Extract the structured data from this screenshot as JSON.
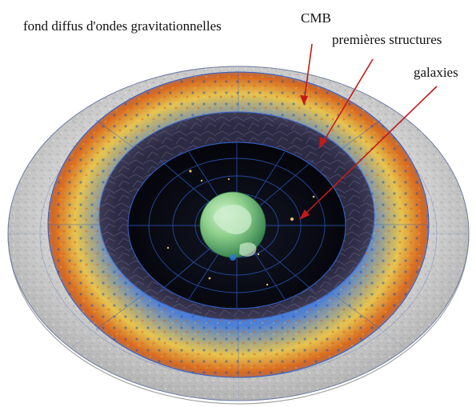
{
  "labels": {
    "gravitational_wave_background": "fond diffus d'ondes gravitationnelles",
    "cmb": "CMB",
    "first_structures": "premières structures",
    "galaxies": "galaxies"
  },
  "colors": {
    "arrow": "#c41a1a",
    "outer_shell": "#c8c8c8",
    "cmb_blue": "#2a5fd8",
    "cmb_orange": "#e07a1a",
    "structures_bg": "#232236",
    "galaxies_bg": "#05050c",
    "earth_land": "#a6d9a6",
    "earth_ocean": "#3f9e5e",
    "grid_line": "#3a67c8"
  }
}
